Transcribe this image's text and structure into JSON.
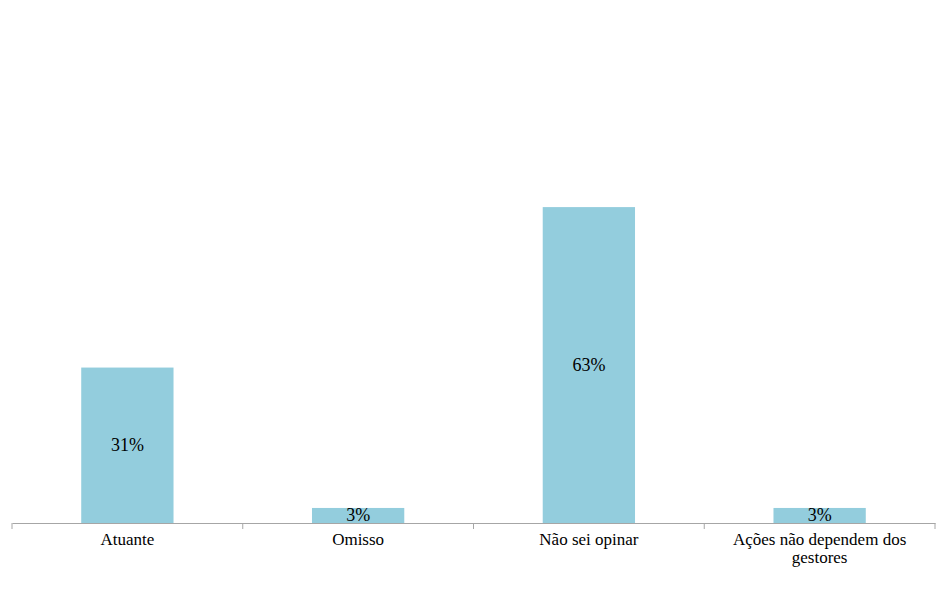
{
  "chart_data": {
    "type": "bar",
    "categories": [
      "Atuante",
      "Omisso",
      "Não sei opinar",
      "Ações não dependem dos gestores"
    ],
    "values": [
      31,
      3,
      63,
      3
    ],
    "value_labels": [
      "31%",
      "3%",
      "63%",
      "3%"
    ],
    "color": "#93cddd",
    "ylim": [
      0,
      70
    ],
    "data_labels": true,
    "tick_labels": "x"
  }
}
